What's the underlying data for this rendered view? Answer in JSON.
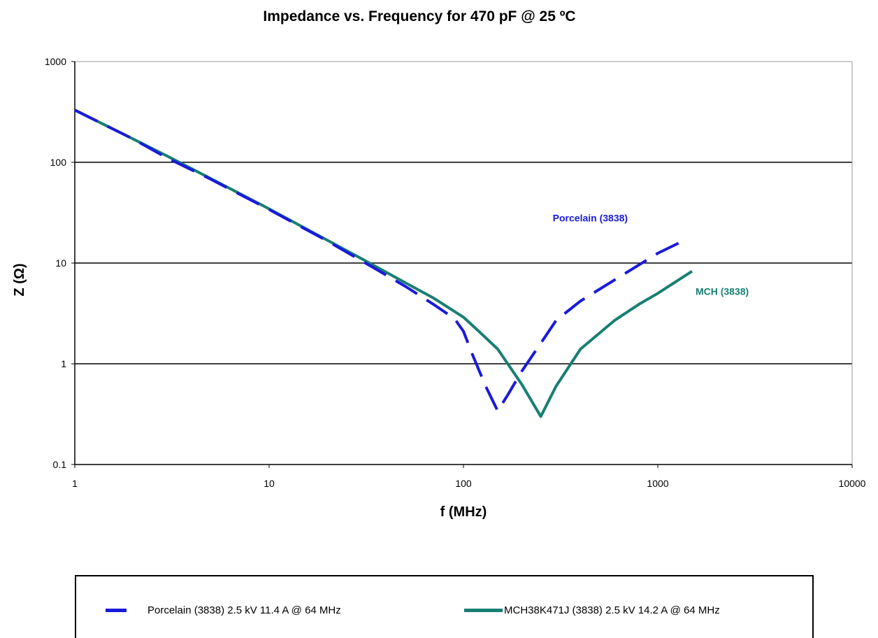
{
  "chart_data": {
    "type": "line",
    "title": "Impedance vs. Frequency for 470 pF @ 25 ºC",
    "xlabel": "f (MHz)",
    "ylabel": "Z (Ω)",
    "x_scale": "log",
    "y_scale": "log",
    "xlim": [
      1,
      10000
    ],
    "ylim": [
      0.1,
      1000
    ],
    "x_ticks": [
      "1",
      "10",
      "100",
      "1000",
      "10000"
    ],
    "y_ticks": [
      "0.1",
      "1",
      "10",
      "100",
      "1000"
    ],
    "grid": "horizontal major lines",
    "legend_position": "bottom",
    "series": [
      {
        "name": "Porcelain (3838) 2.5 kV 11.4 A @ 64 MHz",
        "annotation": "Porcelain (3838)",
        "color": "#1a1adb",
        "style": "dashed",
        "x": [
          1,
          2,
          3,
          5,
          10,
          20,
          30,
          50,
          70,
          90,
          100,
          110,
          130,
          150,
          170,
          200,
          250,
          300,
          400,
          600,
          800,
          1000,
          1300
        ],
        "y": [
          330,
          170,
          110,
          68,
          34,
          16.5,
          10.5,
          5.9,
          3.9,
          2.8,
          2.1,
          1.3,
          0.6,
          0.34,
          0.5,
          0.85,
          1.6,
          2.7,
          4.2,
          6.8,
          9.6,
          12.5,
          16
        ]
      },
      {
        "name": "MCH38K471J (3838) 2.5 kV 14.2 A @ 64 MHz",
        "annotation": "MCH (3838)",
        "color": "#177f72",
        "style": "solid",
        "x": [
          1,
          2,
          3,
          5,
          10,
          20,
          30,
          50,
          70,
          100,
          120,
          150,
          200,
          250,
          300,
          400,
          600,
          800,
          1000,
          1500
        ],
        "y": [
          330,
          170,
          115,
          69,
          34.5,
          16.8,
          11,
          6.4,
          4.5,
          2.9,
          2.1,
          1.4,
          0.62,
          0.3,
          0.6,
          1.4,
          2.7,
          3.9,
          5.0,
          8.3
        ]
      }
    ]
  }
}
